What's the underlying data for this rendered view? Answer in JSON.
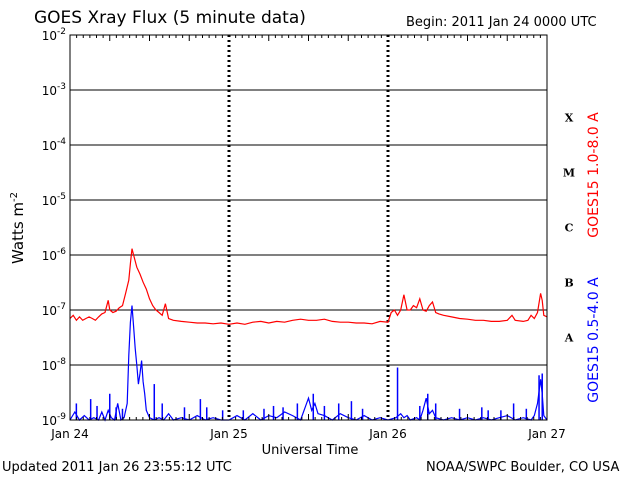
{
  "chart_data": {
    "type": "line",
    "title": "GOES Xray Flux (5 minute data)",
    "begin_label": "Begin:  2011 Jan 24 0000 UTC",
    "xlabel": "Universal Time",
    "ylabel_base": "Watts m",
    "ylabel_exp": "-2",
    "ylim": [
      1e-09,
      0.01
    ],
    "yscale": "log",
    "xlim": [
      0,
      3
    ],
    "y_ticks": [
      {
        "base": "10",
        "exp": "-2",
        "value": 0.01
      },
      {
        "base": "10",
        "exp": "-3",
        "value": 0.001
      },
      {
        "base": "10",
        "exp": "-4",
        "value": 0.0001
      },
      {
        "base": "10",
        "exp": "-5",
        "value": 1e-05
      },
      {
        "base": "10",
        "exp": "-6",
        "value": 1e-06
      },
      {
        "base": "10",
        "exp": "-7",
        "value": 1e-07
      },
      {
        "base": "10",
        "exp": "-8",
        "value": 1e-08
      },
      {
        "base": "10",
        "exp": "-9",
        "value": 1e-09
      }
    ],
    "x_ticks": [
      {
        "label": "Jan 24",
        "value": 0
      },
      {
        "label": "Jan 25",
        "value": 1
      },
      {
        "label": "Jan 26",
        "value": 2
      },
      {
        "label": "Jan 27",
        "value": 3
      }
    ],
    "flare_classes": [
      {
        "label": "X",
        "value": 0.000316
      },
      {
        "label": "M",
        "value": 3.16e-05
      },
      {
        "label": "C",
        "value": 3.16e-06
      },
      {
        "label": "B",
        "value": 3.16e-07
      },
      {
        "label": "A",
        "value": 3.16e-08
      }
    ],
    "series": [
      {
        "name": "GOES15 1.0-8.0 A",
        "color": "#ff0000",
        "points": [
          [
            0.0,
            7e-08
          ],
          [
            0.02,
            8e-08
          ],
          [
            0.04,
            6.5e-08
          ],
          [
            0.06,
            7.5e-08
          ],
          [
            0.08,
            6.5e-08
          ],
          [
            0.1,
            7e-08
          ],
          [
            0.12,
            7.5e-08
          ],
          [
            0.14,
            7e-08
          ],
          [
            0.16,
            6.5e-08
          ],
          [
            0.18,
            7.5e-08
          ],
          [
            0.2,
            8.5e-08
          ],
          [
            0.22,
            9e-08
          ],
          [
            0.24,
            1.5e-07
          ],
          [
            0.25,
            1e-07
          ],
          [
            0.27,
            9e-08
          ],
          [
            0.29,
            9.5e-08
          ],
          [
            0.31,
            1.1e-07
          ],
          [
            0.33,
            1.2e-07
          ],
          [
            0.35,
            2e-07
          ],
          [
            0.37,
            3.5e-07
          ],
          [
            0.38,
            7e-07
          ],
          [
            0.39,
            1.3e-06
          ],
          [
            0.4,
            1e-06
          ],
          [
            0.42,
            6e-07
          ],
          [
            0.44,
            4.5e-07
          ],
          [
            0.46,
            3.2e-07
          ],
          [
            0.48,
            2.4e-07
          ],
          [
            0.5,
            1.6e-07
          ],
          [
            0.52,
            1.2e-07
          ],
          [
            0.54,
            1e-07
          ],
          [
            0.56,
            9e-08
          ],
          [
            0.58,
            8e-08
          ],
          [
            0.6,
            1.3e-07
          ],
          [
            0.62,
            7e-08
          ],
          [
            0.65,
            6.5e-08
          ],
          [
            0.7,
            6.2e-08
          ],
          [
            0.75,
            6e-08
          ],
          [
            0.8,
            5.8e-08
          ],
          [
            0.85,
            5.8e-08
          ],
          [
            0.9,
            5.6e-08
          ],
          [
            0.95,
            5.8e-08
          ],
          [
            1.0,
            5.5e-08
          ],
          [
            1.05,
            5.8e-08
          ],
          [
            1.1,
            5.5e-08
          ],
          [
            1.15,
            6e-08
          ],
          [
            1.2,
            6.2e-08
          ],
          [
            1.25,
            5.8e-08
          ],
          [
            1.3,
            6.2e-08
          ],
          [
            1.35,
            6e-08
          ],
          [
            1.4,
            6.5e-08
          ],
          [
            1.45,
            6.8e-08
          ],
          [
            1.5,
            6.5e-08
          ],
          [
            1.55,
            6.5e-08
          ],
          [
            1.6,
            6.8e-08
          ],
          [
            1.65,
            6.2e-08
          ],
          [
            1.7,
            6e-08
          ],
          [
            1.75,
            6e-08
          ],
          [
            1.8,
            5.8e-08
          ],
          [
            1.85,
            5.8e-08
          ],
          [
            1.9,
            5.6e-08
          ],
          [
            1.95,
            6.2e-08
          ],
          [
            2.0,
            6e-08
          ],
          [
            2.02,
            9e-08
          ],
          [
            2.04,
            1e-07
          ],
          [
            2.06,
            8e-08
          ],
          [
            2.08,
            1e-07
          ],
          [
            2.1,
            1.9e-07
          ],
          [
            2.12,
            1e-07
          ],
          [
            2.14,
            1e-07
          ],
          [
            2.16,
            1.2e-07
          ],
          [
            2.18,
            1.1e-07
          ],
          [
            2.2,
            1.6e-07
          ],
          [
            2.22,
            1e-07
          ],
          [
            2.24,
            9.5e-08
          ],
          [
            2.26,
            1.2e-07
          ],
          [
            2.28,
            1.4e-07
          ],
          [
            2.3,
            9e-08
          ],
          [
            2.32,
            8.5e-08
          ],
          [
            2.35,
            8e-08
          ],
          [
            2.4,
            7.5e-08
          ],
          [
            2.45,
            7e-08
          ],
          [
            2.5,
            6.8e-08
          ],
          [
            2.55,
            6.5e-08
          ],
          [
            2.6,
            6.5e-08
          ],
          [
            2.65,
            6.2e-08
          ],
          [
            2.7,
            6.2e-08
          ],
          [
            2.75,
            6.5e-08
          ],
          [
            2.78,
            8e-08
          ],
          [
            2.8,
            6.5e-08
          ],
          [
            2.85,
            6.2e-08
          ],
          [
            2.88,
            6.5e-08
          ],
          [
            2.9,
            8e-08
          ],
          [
            2.92,
            7e-08
          ],
          [
            2.94,
            9e-08
          ],
          [
            2.96,
            2e-07
          ],
          [
            2.97,
            1.5e-07
          ],
          [
            2.98,
            8e-08
          ],
          [
            3.0,
            7.5e-08
          ]
        ]
      },
      {
        "name": "GOES15 0.5-4.0 A",
        "color": "#0000ff",
        "points": [
          [
            0.0,
            1e-09
          ],
          [
            0.03,
            1.4e-09
          ],
          [
            0.06,
            1e-09
          ],
          [
            0.09,
            1.2e-09
          ],
          [
            0.12,
            1e-09
          ],
          [
            0.15,
            1.1e-09
          ],
          [
            0.18,
            1e-09
          ],
          [
            0.2,
            1.4e-09
          ],
          [
            0.22,
            1e-09
          ],
          [
            0.24,
            1.5e-09
          ],
          [
            0.26,
            1.1e-09
          ],
          [
            0.28,
            1e-09
          ],
          [
            0.3,
            2e-09
          ],
          [
            0.32,
            1e-09
          ],
          [
            0.34,
            1.1e-09
          ],
          [
            0.36,
            2e-09
          ],
          [
            0.37,
            1.5e-08
          ],
          [
            0.38,
            6e-08
          ],
          [
            0.39,
            1.2e-07
          ],
          [
            0.4,
            5e-08
          ],
          [
            0.41,
            2e-08
          ],
          [
            0.42,
            1e-08
          ],
          [
            0.43,
            4.5e-09
          ],
          [
            0.44,
            7e-09
          ],
          [
            0.45,
            1.2e-08
          ],
          [
            0.46,
            5e-09
          ],
          [
            0.47,
            3e-09
          ],
          [
            0.48,
            1.5e-09
          ],
          [
            0.5,
            1.1e-09
          ],
          [
            0.53,
            1e-09
          ],
          [
            0.56,
            1.1e-09
          ],
          [
            0.59,
            1e-09
          ],
          [
            0.62,
            1.3e-09
          ],
          [
            0.65,
            1e-09
          ],
          [
            0.7,
            1.1e-09
          ],
          [
            0.75,
            1e-09
          ],
          [
            0.8,
            1.2e-09
          ],
          [
            0.85,
            1e-09
          ],
          [
            0.9,
            1.1e-09
          ],
          [
            0.95,
            1e-09
          ],
          [
            1.0,
            1e-09
          ],
          [
            1.05,
            1.2e-09
          ],
          [
            1.1,
            1e-09
          ],
          [
            1.15,
            1.3e-09
          ],
          [
            1.2,
            1e-09
          ],
          [
            1.25,
            1.2e-09
          ],
          [
            1.3,
            1.1e-09
          ],
          [
            1.35,
            1.4e-09
          ],
          [
            1.4,
            1.2e-09
          ],
          [
            1.45,
            1e-09
          ],
          [
            1.5,
            2.5e-09
          ],
          [
            1.52,
            1.5e-09
          ],
          [
            1.54,
            2e-09
          ],
          [
            1.56,
            1.3e-09
          ],
          [
            1.6,
            1.2e-09
          ],
          [
            1.65,
            1e-09
          ],
          [
            1.7,
            1.3e-09
          ],
          [
            1.75,
            1.1e-09
          ],
          [
            1.8,
            1e-09
          ],
          [
            1.85,
            1.2e-09
          ],
          [
            1.9,
            1e-09
          ],
          [
            1.95,
            1.1e-09
          ],
          [
            2.0,
            1e-09
          ],
          [
            2.05,
            1.1e-09
          ],
          [
            2.08,
            1.3e-09
          ],
          [
            2.1,
            1.1e-09
          ],
          [
            2.12,
            1.2e-09
          ],
          [
            2.14,
            1e-09
          ],
          [
            2.18,
            1.1e-09
          ],
          [
            2.2,
            1e-09
          ],
          [
            2.22,
            1.5e-09
          ],
          [
            2.24,
            2.5e-09
          ],
          [
            2.26,
            1.3e-09
          ],
          [
            2.28,
            1.5e-09
          ],
          [
            2.3,
            1.1e-09
          ],
          [
            2.35,
            1e-09
          ],
          [
            2.4,
            1.1e-09
          ],
          [
            2.45,
            1e-09
          ],
          [
            2.5,
            1.1e-09
          ],
          [
            2.55,
            1e-09
          ],
          [
            2.6,
            1.1e-09
          ],
          [
            2.65,
            1e-09
          ],
          [
            2.7,
            1.1e-09
          ],
          [
            2.75,
            1.2e-09
          ],
          [
            2.8,
            1e-09
          ],
          [
            2.85,
            1.1e-09
          ],
          [
            2.9,
            1e-09
          ],
          [
            2.92,
            1.2e-09
          ],
          [
            2.94,
            2e-09
          ],
          [
            2.96,
            5.5e-09
          ],
          [
            2.97,
            3e-09
          ],
          [
            2.98,
            1.2e-09
          ],
          [
            3.0,
            1e-09
          ]
        ],
        "spikes": [
          [
            0.04,
            2e-09
          ],
          [
            0.13,
            2.4e-09
          ],
          [
            0.17,
            1.8e-09
          ],
          [
            0.25,
            3e-09
          ],
          [
            0.29,
            1.7e-09
          ],
          [
            0.33,
            1.6e-09
          ],
          [
            0.53,
            4.5e-09
          ],
          [
            0.58,
            2e-09
          ],
          [
            0.72,
            1.7e-09
          ],
          [
            0.82,
            2.4e-09
          ],
          [
            0.86,
            1.7e-09
          ],
          [
            0.96,
            1.5e-09
          ],
          [
            1.09,
            1.5e-09
          ],
          [
            1.22,
            1.6e-09
          ],
          [
            1.28,
            1.8e-09
          ],
          [
            1.34,
            1.7e-09
          ],
          [
            1.43,
            2e-09
          ],
          [
            1.53,
            3e-09
          ],
          [
            1.6,
            1.8e-09
          ],
          [
            1.69,
            2e-09
          ],
          [
            1.77,
            2.2e-09
          ],
          [
            1.84,
            1.6e-09
          ],
          [
            2.06,
            9e-09
          ],
          [
            2.2,
            1.8e-09
          ],
          [
            2.25,
            3e-09
          ],
          [
            2.3,
            2e-09
          ],
          [
            2.45,
            1.6e-09
          ],
          [
            2.59,
            1.7e-09
          ],
          [
            2.63,
            1.5e-09
          ],
          [
            2.71,
            1.5e-09
          ],
          [
            2.79,
            2e-09
          ],
          [
            2.87,
            1.6e-09
          ],
          [
            2.95,
            6.5e-09
          ],
          [
            2.97,
            7e-09
          ]
        ]
      }
    ]
  },
  "footer": {
    "updated": "Updated 2011 Jan 26 23:55:12 UTC",
    "credit": "NOAA/SWPC Boulder, CO USA"
  }
}
